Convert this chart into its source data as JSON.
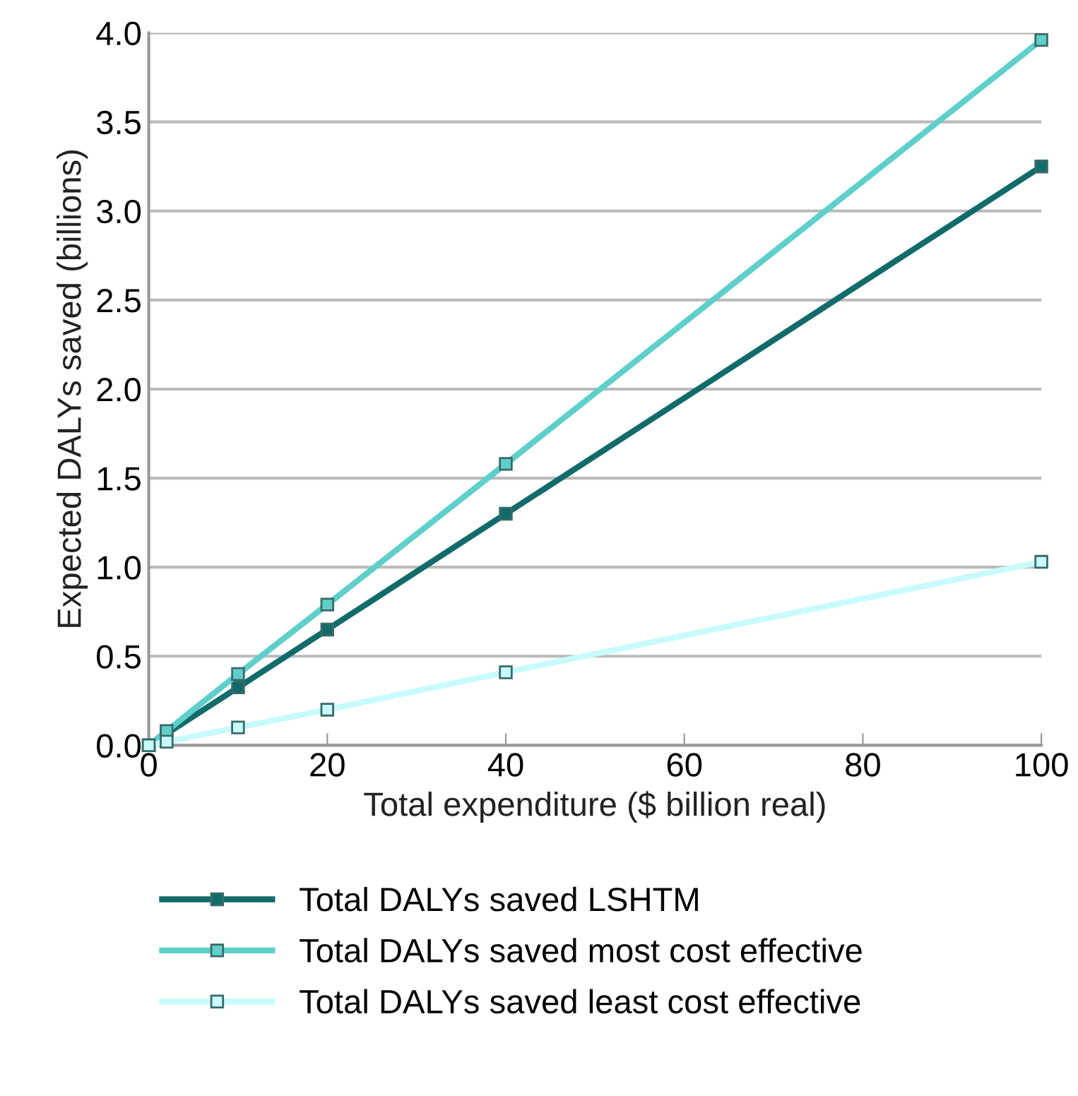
{
  "chart_data": {
    "type": "line",
    "xlabel": "Total expenditure ($ billion real)",
    "ylabel": "Expected DALYs saved (billions)",
    "x": [
      0,
      2,
      10,
      20,
      40,
      100
    ],
    "series": [
      {
        "name": "Total DALYs saved LSHTM",
        "color": "#126b6b",
        "values": [
          0,
          0.065,
          0.325,
          0.65,
          1.3,
          3.25
        ]
      },
      {
        "name": "Total DALYs saved most cost effective",
        "color": "#5fcfca",
        "values": [
          0,
          0.08,
          0.4,
          0.79,
          1.58,
          3.96
        ]
      },
      {
        "name": "Total DALYs saved least cost effective",
        "color": "#c8fbfb",
        "values": [
          0,
          0.02,
          0.1,
          0.2,
          0.41,
          1.03
        ]
      }
    ],
    "xlim": [
      0,
      100
    ],
    "xticks": [
      0,
      20,
      40,
      60,
      80,
      100
    ],
    "ylim": [
      0,
      4
    ],
    "yticks": [
      {
        "value": 0,
        "label": "0.0"
      },
      {
        "value": 0.5,
        "label": "0.5"
      },
      {
        "value": 1,
        "label": "1.0"
      },
      {
        "value": 1.5,
        "label": "1.5"
      },
      {
        "value": 2,
        "label": "2.0"
      },
      {
        "value": 2.5,
        "label": "2.5"
      },
      {
        "value": 3,
        "label": "3.0"
      },
      {
        "value": 3.5,
        "label": "3.5"
      },
      {
        "value": 4,
        "label": "4.0"
      }
    ],
    "grid": "y",
    "legend": "bottom",
    "marker": "square",
    "line_style": "solid"
  }
}
